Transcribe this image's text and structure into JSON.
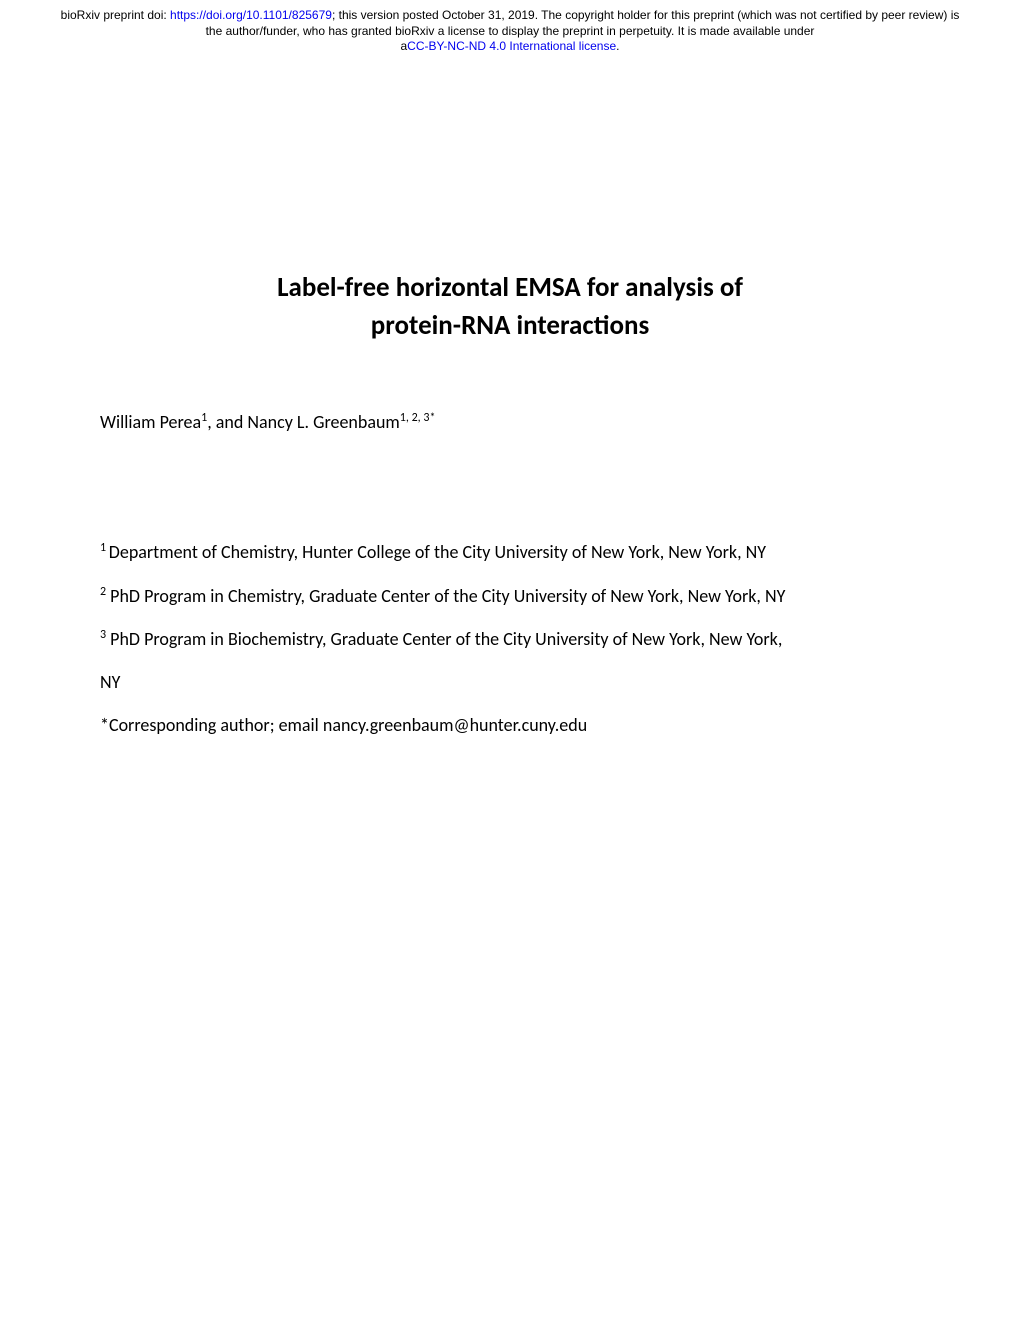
{
  "header": {
    "prefix": "bioRxiv preprint doi: ",
    "doi_link": "https://doi.org/10.1101/825679",
    "middle": "; this version posted October 31, 2019. The copyright holder for this preprint (which was not certified by peer review) is the author/funder, who has granted bioRxiv a license to display the preprint in perpetuity. It is made available under",
    "license_prefix": "a",
    "license_link": "CC-BY-NC-ND 4.0 International license",
    "license_suffix": "."
  },
  "title_line1": "Label-free horizontal EMSA for analysis of",
  "title_line2": "protein-RNA interactions",
  "authors": {
    "author1_name": "William Perea",
    "author1_sup": "1",
    "separator": ", and ",
    "author2_name": "Nancy L. Greenbaum",
    "author2_sup": "1, 2, 3*"
  },
  "affiliations": {
    "aff1_sup": "1 ",
    "aff1_text": "Department of Chemistry, Hunter College of the City University of New York, New York, NY",
    "aff2_sup": "2",
    "aff2_text": " PhD Program in Chemistry, Graduate Center of the City University of New York, New York, NY",
    "aff3_sup": "3",
    "aff3_text": " PhD Program in Biochemistry, Graduate Center of the City University of New York, New York,",
    "aff3_text2": "NY",
    "corresponding": "*Corresponding author; email nancy.greenbaum@hunter.cuny.edu"
  }
}
